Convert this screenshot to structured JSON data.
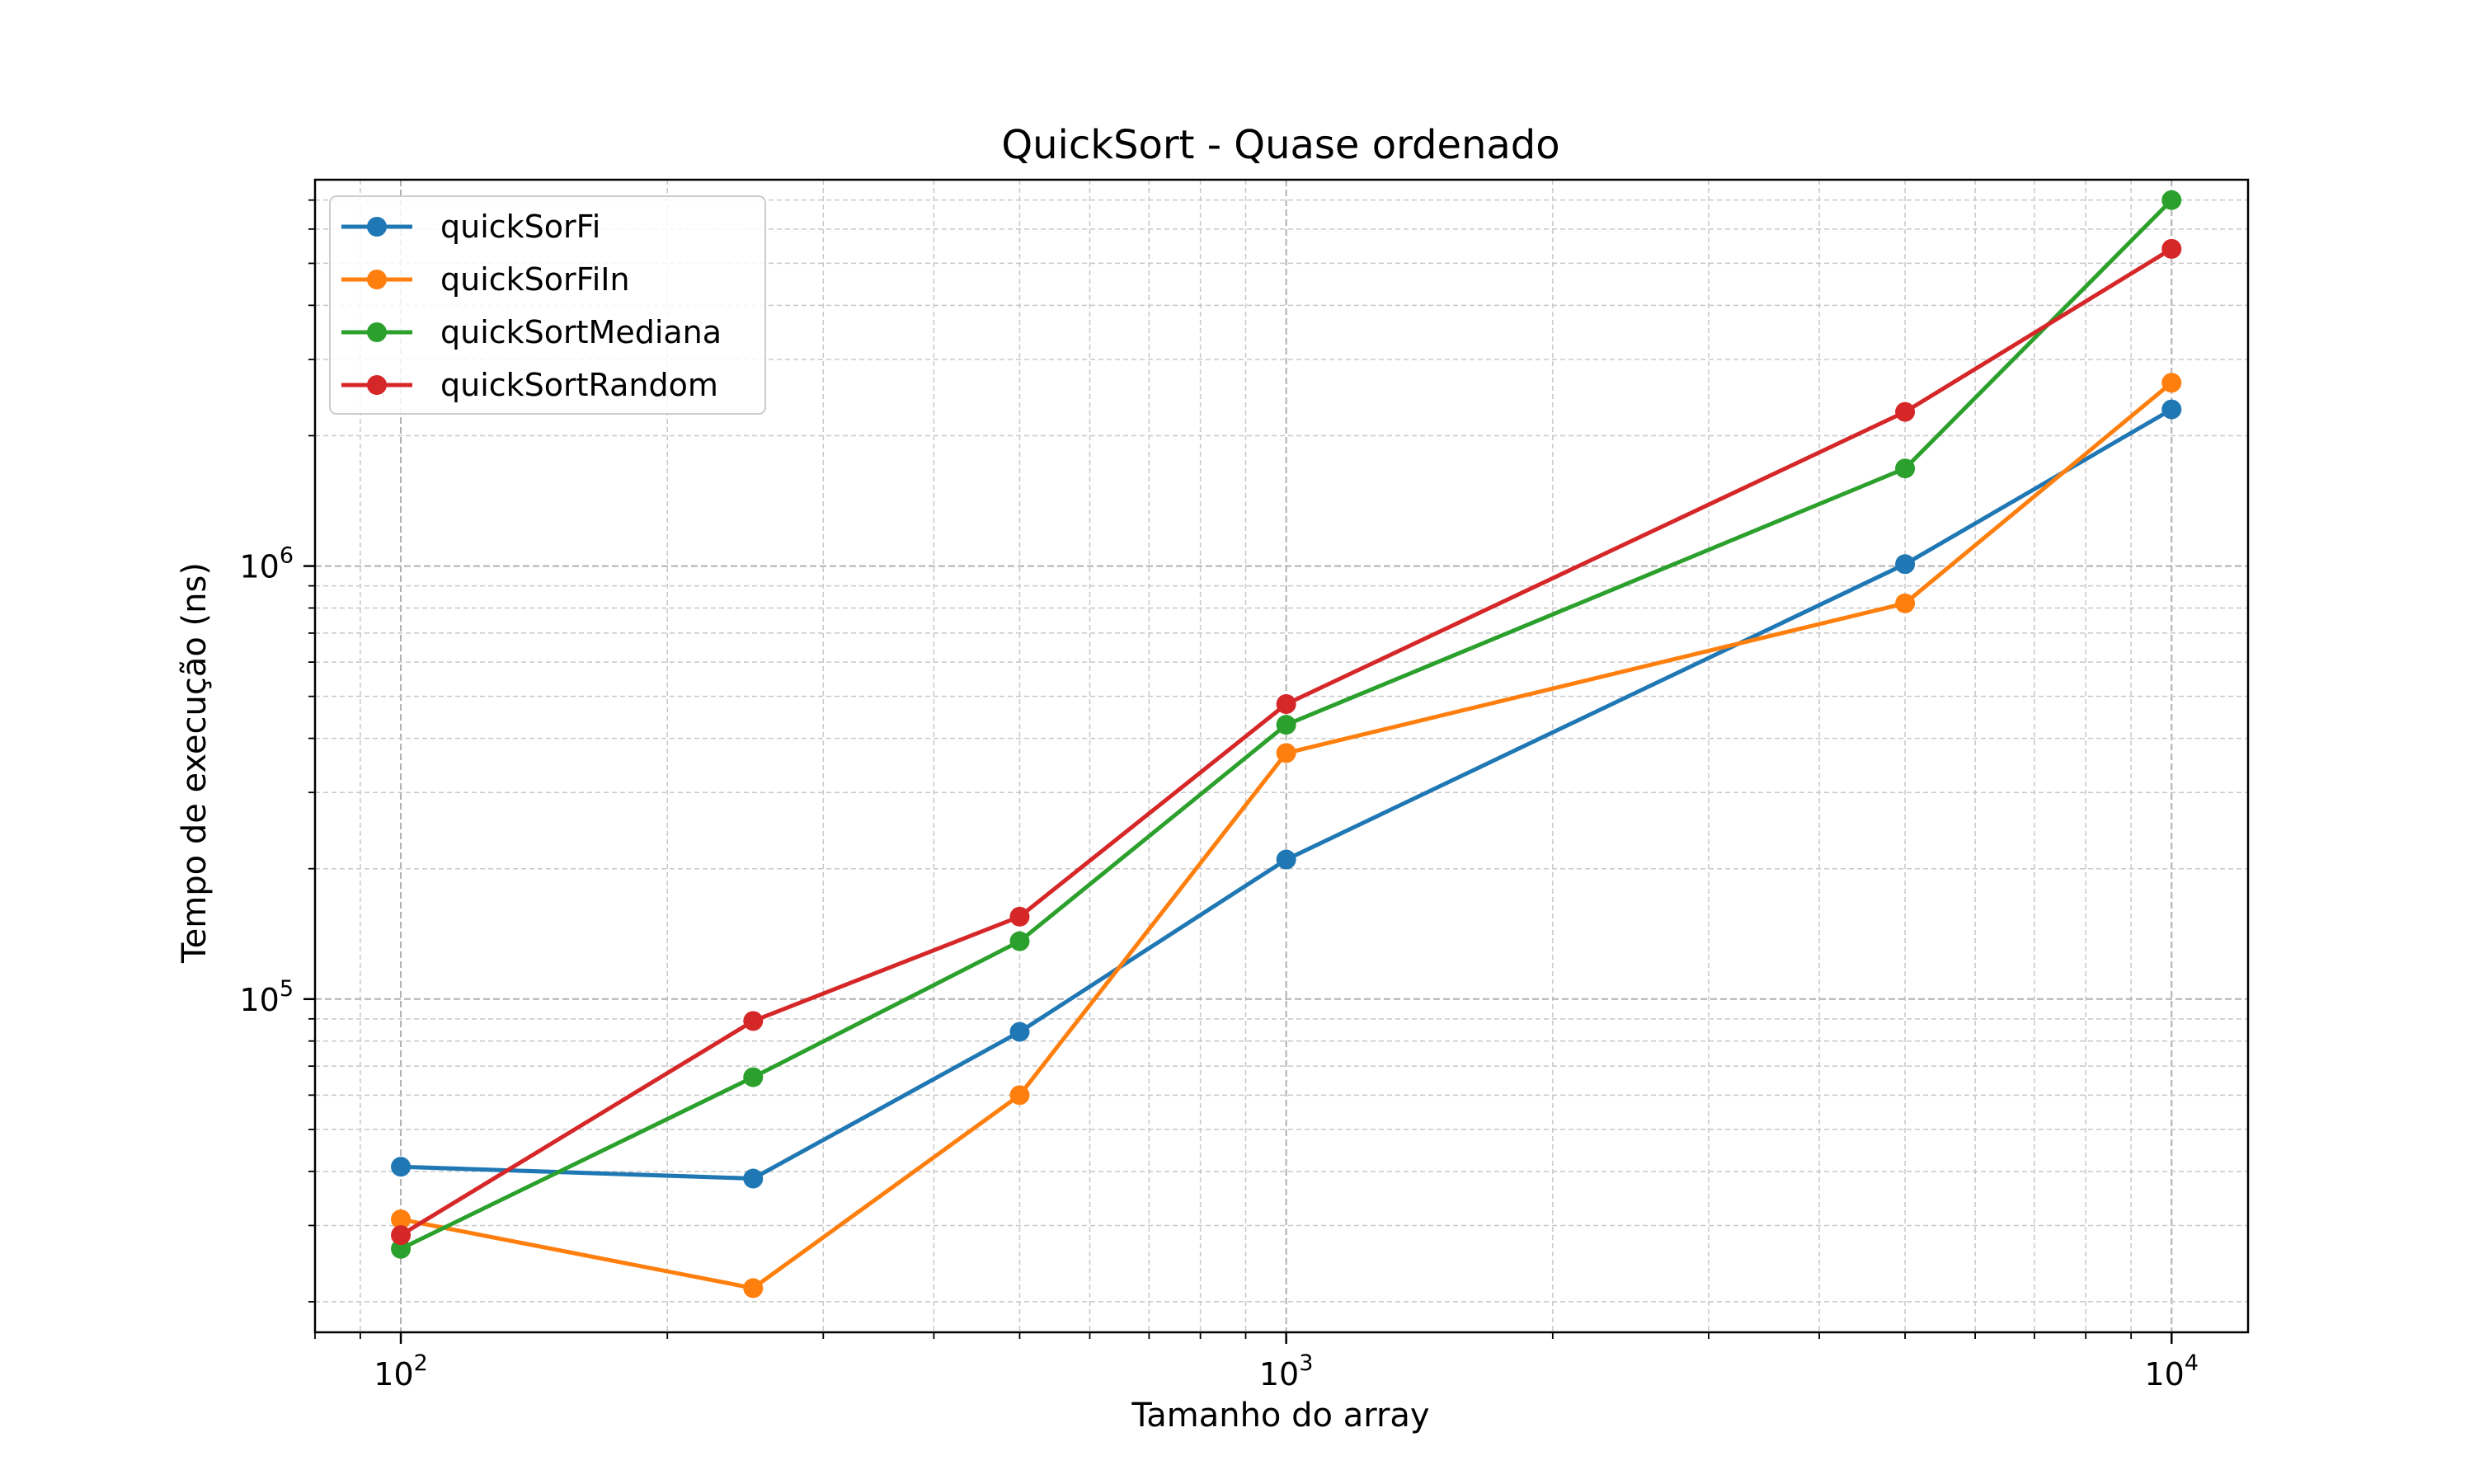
{
  "chart_data": {
    "type": "line",
    "title": "QuickSort - Quase ordenado",
    "xlabel": "Tamanho do array",
    "ylabel": "Tempo de execução (ns)",
    "xscale": "log",
    "yscale": "log",
    "xlim": [
      80,
      12200
    ],
    "ylim": [
      17000,
      7800000
    ],
    "x_ticks": [
      {
        "value": 100,
        "base": "10",
        "exp": "2"
      },
      {
        "value": 1000,
        "base": "10",
        "exp": "3"
      },
      {
        "value": 10000,
        "base": "10",
        "exp": "4"
      }
    ],
    "y_ticks": [
      {
        "value": 100000,
        "base": "10",
        "exp": "5"
      },
      {
        "value": 1000000,
        "base": "10",
        "exp": "6"
      }
    ],
    "grid": "both (major and minor), dashed",
    "legend_position": "upper-left",
    "x": [
      100,
      250,
      500,
      1000,
      5000,
      10000
    ],
    "series": [
      {
        "name": "quickSorFi",
        "color": "#1f77b4",
        "values": [
          41000,
          38500,
          84000,
          210000,
          1010000,
          2300000
        ]
      },
      {
        "name": "quickSorFiIn",
        "color": "#ff7f0e",
        "values": [
          31000,
          21500,
          60000,
          370000,
          820000,
          2650000
        ]
      },
      {
        "name": "quickSortMediana",
        "color": "#2ca02c",
        "values": [
          26500,
          66000,
          136000,
          430000,
          1680000,
          7000000
        ]
      },
      {
        "name": "quickSortRandom",
        "color": "#d62728",
        "values": [
          28500,
          89000,
          155000,
          480000,
          2270000,
          5400000
        ]
      }
    ]
  }
}
